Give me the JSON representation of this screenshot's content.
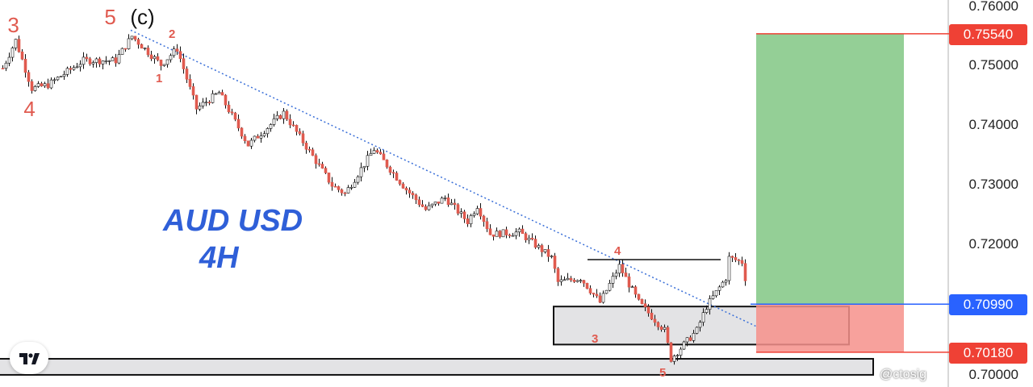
{
  "chart_data": {
    "type": "candlestick",
    "title": "AUD USD",
    "timeframe": "4H",
    "ylim": [
      0.698,
      0.7613
    ],
    "y_ticks": [
      "0.76000",
      "0.75000",
      "0.74000",
      "0.73000",
      "0.72000",
      "0.70000"
    ],
    "grid": false,
    "price_path": [
      [
        0,
        0.7496
      ],
      [
        4,
        0.7543
      ],
      [
        9,
        0.7462
      ],
      [
        14,
        0.7468
      ],
      [
        25,
        0.7509
      ],
      [
        35,
        0.7509
      ],
      [
        40,
        0.755
      ],
      [
        49,
        0.7502
      ],
      [
        54,
        0.7529
      ],
      [
        60,
        0.7428
      ],
      [
        67,
        0.7455
      ],
      [
        76,
        0.7367
      ],
      [
        87,
        0.7421
      ],
      [
        102,
        0.7299
      ],
      [
        106,
        0.7285
      ],
      [
        115,
        0.736
      ],
      [
        125,
        0.7292
      ],
      [
        131,
        0.7258
      ],
      [
        137,
        0.7278
      ],
      [
        144,
        0.7238
      ],
      [
        147,
        0.7265
      ],
      [
        151,
        0.7217
      ],
      [
        160,
        0.722
      ],
      [
        170,
        0.7177
      ],
      [
        172,
        0.7136
      ],
      [
        179,
        0.7143
      ],
      [
        185,
        0.7102
      ],
      [
        191,
        0.7163
      ],
      [
        197,
        0.7102
      ],
      [
        205,
        0.7055
      ],
      [
        207,
        0.7007
      ],
      [
        215,
        0.7055
      ],
      [
        218,
        0.7095
      ],
      [
        224,
        0.7143
      ],
      [
        225,
        0.7177
      ],
      [
        229,
        0.717
      ],
      [
        230,
        0.7143
      ]
    ],
    "colors": {
      "up": "#ffffff",
      "down": "#e05a4f",
      "wick": "#111111"
    },
    "position": {
      "type": "long",
      "target": 0.7554,
      "entry": 0.7099,
      "stop": 0.7018,
      "target_color": "#94cf96",
      "stop_color": "#f6918b"
    },
    "zones": [
      {
        "top": 0.7095,
        "bottom": 0.7031
      },
      {
        "top": 0.7007,
        "bottom": 0.698
      }
    ],
    "resistance_line": 0.7174,
    "trendline": [
      [
        40,
        0.756
      ],
      [
        234,
        0.7061
      ]
    ],
    "wave_labels": [
      {
        "text": "3",
        "bar": 4,
        "price": 0.7572
      },
      {
        "text": "4",
        "bar": 9,
        "price": 0.743
      },
      {
        "text": "5",
        "bar": 34,
        "price": 0.7585
      },
      {
        "text": "(c)",
        "bar": 42,
        "price": 0.7585
      },
      {
        "text": "2",
        "bar": 53,
        "price": 0.7555
      },
      {
        "text": "1",
        "bar": 49,
        "price": 0.748
      },
      {
        "text": "4",
        "bar": 191,
        "price": 0.719
      },
      {
        "text": "3",
        "bar": 184,
        "price": 0.7042
      },
      {
        "text": "5",
        "bar": 205,
        "price": 0.6985
      }
    ]
  },
  "axis_tags": {
    "target": "0.75540",
    "entry": "0.70990",
    "stop": "0.70180"
  },
  "watermark": "@ctosig",
  "title_line1": "AUD USD",
  "title_line2": "4H"
}
